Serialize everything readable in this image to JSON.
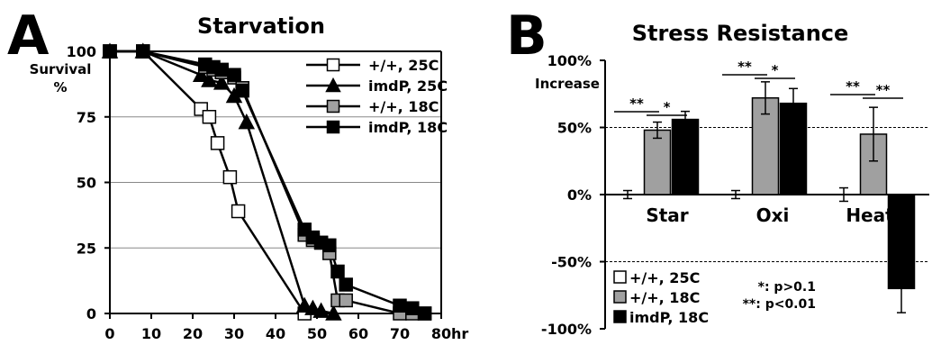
{
  "chart_data": [
    {
      "panel": "A",
      "type": "line",
      "title": "Starvation",
      "ylabel": "Survival\n%",
      "xlabel": "hr",
      "xlim": [
        0,
        80
      ],
      "ylim": [
        0,
        100
      ],
      "xticks": [
        0,
        10,
        20,
        30,
        40,
        50,
        60,
        70,
        80
      ],
      "yticks": [
        0,
        25,
        50,
        75,
        100
      ],
      "x_unit": "hr",
      "gridlines_y": [
        25,
        50,
        75,
        100
      ],
      "legend_position": "top-right",
      "series": [
        {
          "name": "+/+, 25C",
          "marker": "open-square",
          "fill": "#ffffff",
          "x": [
            0,
            8,
            22,
            24,
            26,
            29,
            31,
            47
          ],
          "y": [
            100,
            100,
            78,
            75,
            65,
            52,
            39,
            0
          ]
        },
        {
          "name": "imdP, 25C",
          "marker": "triangle",
          "fill": "#000000",
          "x": [
            0,
            8,
            22,
            24,
            27,
            30,
            33,
            47,
            49,
            51,
            54
          ],
          "y": [
            100,
            100,
            91,
            89,
            88,
            83,
            73,
            3,
            2,
            1,
            0
          ]
        },
        {
          "name": "+/+, 18C",
          "marker": "grey-square",
          "fill": "#a0a0a0",
          "x": [
            0,
            8,
            23,
            25,
            27,
            30,
            32,
            47,
            49,
            51,
            53,
            55,
            57,
            70,
            73,
            76
          ],
          "y": [
            100,
            100,
            94,
            93,
            92,
            90,
            86,
            30,
            28,
            27,
            23,
            5,
            5,
            0,
            0,
            0
          ]
        },
        {
          "name": "imdP, 18C",
          "marker": "black-square",
          "fill": "#000000",
          "x": [
            0,
            8,
            23,
            25,
            27,
            30,
            32,
            47,
            49,
            51,
            53,
            55,
            57,
            70,
            73,
            76
          ],
          "y": [
            100,
            100,
            95,
            94,
            93,
            91,
            85,
            32,
            29,
            27,
            26,
            16,
            11,
            3,
            2,
            0
          ]
        }
      ]
    },
    {
      "panel": "B",
      "type": "bar",
      "title": "Stress Resistance",
      "ylabel": "Increase",
      "ylim": [
        -100,
        100
      ],
      "yticks": [
        -100,
        -50,
        0,
        50,
        100
      ],
      "ytick_labels": [
        "-100%",
        "-50%",
        "0%",
        "50%",
        "100%"
      ],
      "dashed_gridlines_y": [
        50,
        -50
      ],
      "categories": [
        "Star",
        "Oxi",
        "Heat"
      ],
      "legend_position": "bottom-left",
      "series": [
        {
          "name": "+/+, 25C",
          "fill": "#ffffff",
          "values": [
            0,
            0,
            0
          ],
          "errors": [
            3,
            3,
            5
          ]
        },
        {
          "name": "+/+, 18C",
          "fill": "#a0a0a0",
          "values": [
            48,
            72,
            45
          ],
          "errors": [
            6,
            12,
            20
          ]
        },
        {
          "name": "imdP, 18C",
          "fill": "#000000",
          "values": [
            56,
            68,
            -70
          ],
          "errors": [
            6,
            11,
            18
          ]
        }
      ],
      "significance": [
        {
          "category": 0,
          "from": 0,
          "to": 1,
          "label": "**"
        },
        {
          "category": 0,
          "from": 1,
          "to": 2,
          "label": "*"
        },
        {
          "category": 1,
          "from": 0,
          "to": 1,
          "label": "**"
        },
        {
          "category": 1,
          "from": 1,
          "to": 2,
          "label": "*"
        },
        {
          "category": 2,
          "from": 0,
          "to": 1,
          "label": "**"
        },
        {
          "category": 2,
          "from": 1,
          "to": 2,
          "label": "**"
        }
      ],
      "notes": [
        "*: p>0.1",
        "**: p<0.01"
      ]
    }
  ]
}
